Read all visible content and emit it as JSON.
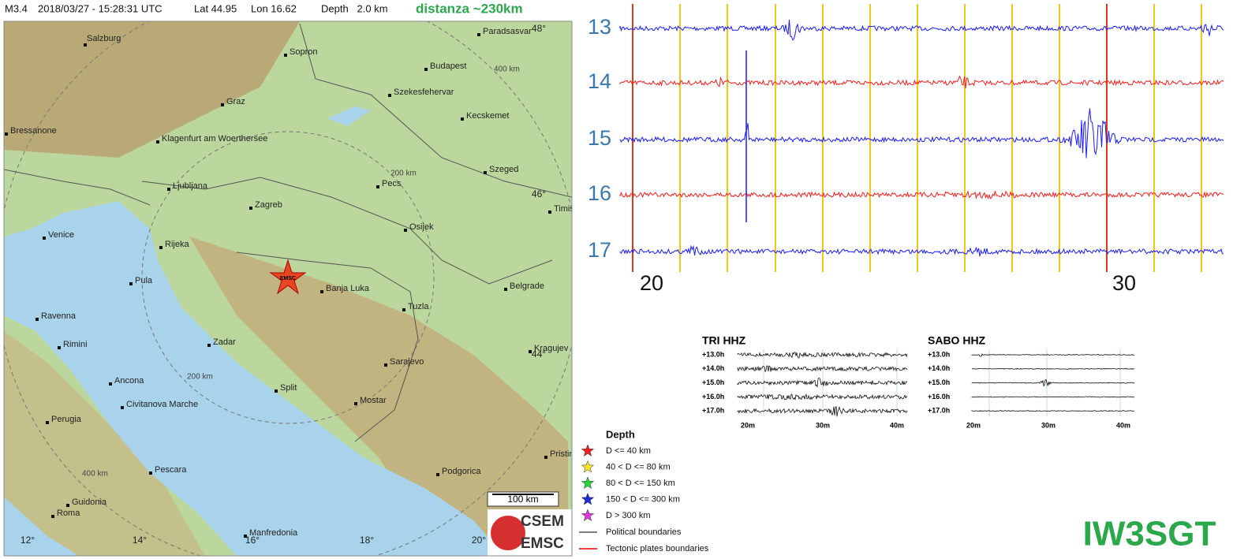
{
  "header": {
    "magnitude": "M3.4",
    "datetime": "2018/03/27 - 15:28:31 UTC",
    "lat": "Lat 44.95",
    "lon": "Lon 16.62",
    "depth": "Depth   2.0 km",
    "distance": "distanza ~230km"
  },
  "map": {
    "cities": [
      "Salzburg",
      "Sopron",
      "Budapest",
      "Paradsasvar",
      "Graz",
      "Szekesfehervar",
      "Kecskemet",
      "Bressanone",
      "Klagenfurt am Woerthersee",
      "Szeged",
      "Ljubljana",
      "Pecs",
      "Zagreb",
      "Timis",
      "Osijek",
      "Venice",
      "Rijeka",
      "Pula",
      "Banja Luka",
      "Belgrade",
      "Tuzla",
      "Ravenna",
      "Rimini",
      "Zadar",
      "Kragujev",
      "Sarajevo",
      "Ancona",
      "Split",
      "Civitanova Marche",
      "Mostar",
      "Perugia",
      "Pristin",
      "Pescara",
      "Podgorica",
      "Guidonia",
      "Roma",
      "Manfredonia"
    ],
    "grid_labels": [
      "48°",
      "46°",
      "44°",
      "12°",
      "14°",
      "16°",
      "18°",
      "20°"
    ],
    "ring_labels": [
      "400 km",
      "200 km",
      "200 km",
      "400 km"
    ],
    "epicenter": "EMSC",
    "scale": "100 km",
    "logo": [
      "CSEM",
      "EMSC"
    ]
  },
  "legend": {
    "title": "Depth",
    "items": [
      "D <= 40 km",
      "40 < D <= 80 km",
      "80 < D <= 150 km",
      "150 < D <= 300 km",
      "D > 300 km"
    ],
    "lines": [
      "Political boundaries",
      "Tectonic plates boundaries"
    ]
  },
  "helicorder": {
    "hours": [
      "13",
      "14",
      "15",
      "16",
      "17"
    ],
    "minutes": [
      "20",
      "30"
    ]
  },
  "panels": [
    {
      "title": "TRI HHZ",
      "rows": [
        "+13.0h",
        "+14.0h",
        "+15.0h",
        "+16.0h",
        "+17.0h"
      ],
      "minutes": [
        "20m",
        "30m",
        "40m"
      ]
    },
    {
      "title": "SABO HHZ",
      "rows": [
        "+13.0h",
        "+14.0h",
        "+15.0h",
        "+16.0h",
        "+17.0h"
      ],
      "minutes": [
        "20m",
        "30m",
        "40m"
      ]
    }
  ],
  "callsign": "IW3SGT"
}
